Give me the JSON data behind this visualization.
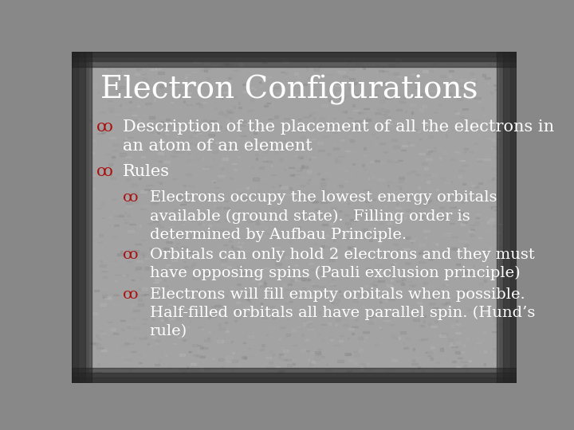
{
  "title": "Electron Configurations",
  "title_fontsize": 28,
  "title_color": "#ffffff",
  "title_font": "serif",
  "background_color": "#888888",
  "bg_light_color": "#b0b0b0",
  "bg_dark_color": "#555555",
  "text_color": "#ffffff",
  "bullet_color": "#aa1111",
  "body_fontsize": 15,
  "sub_fontsize": 14,
  "font_family": "serif",
  "bullet_sym": "∞",
  "bullets": [
    {
      "level": 1,
      "text": "Description of the placement of all the electrons in\nan atom of an element"
    },
    {
      "level": 1,
      "text": "Rules"
    },
    {
      "level": 2,
      "text": "Electrons occupy the lowest energy orbitals\navailable (ground state).  Filling order is\ndetermined by Aufbau Principle."
    },
    {
      "level": 2,
      "text": "Orbitals can only hold 2 electrons and they must\nhave opposing spins (Pauli exclusion principle)"
    },
    {
      "level": 2,
      "text": "Electrons will fill empty orbitals when possible.\nHalf-filled orbitals all have parallel spin. (Hund’s\nrule)"
    }
  ]
}
